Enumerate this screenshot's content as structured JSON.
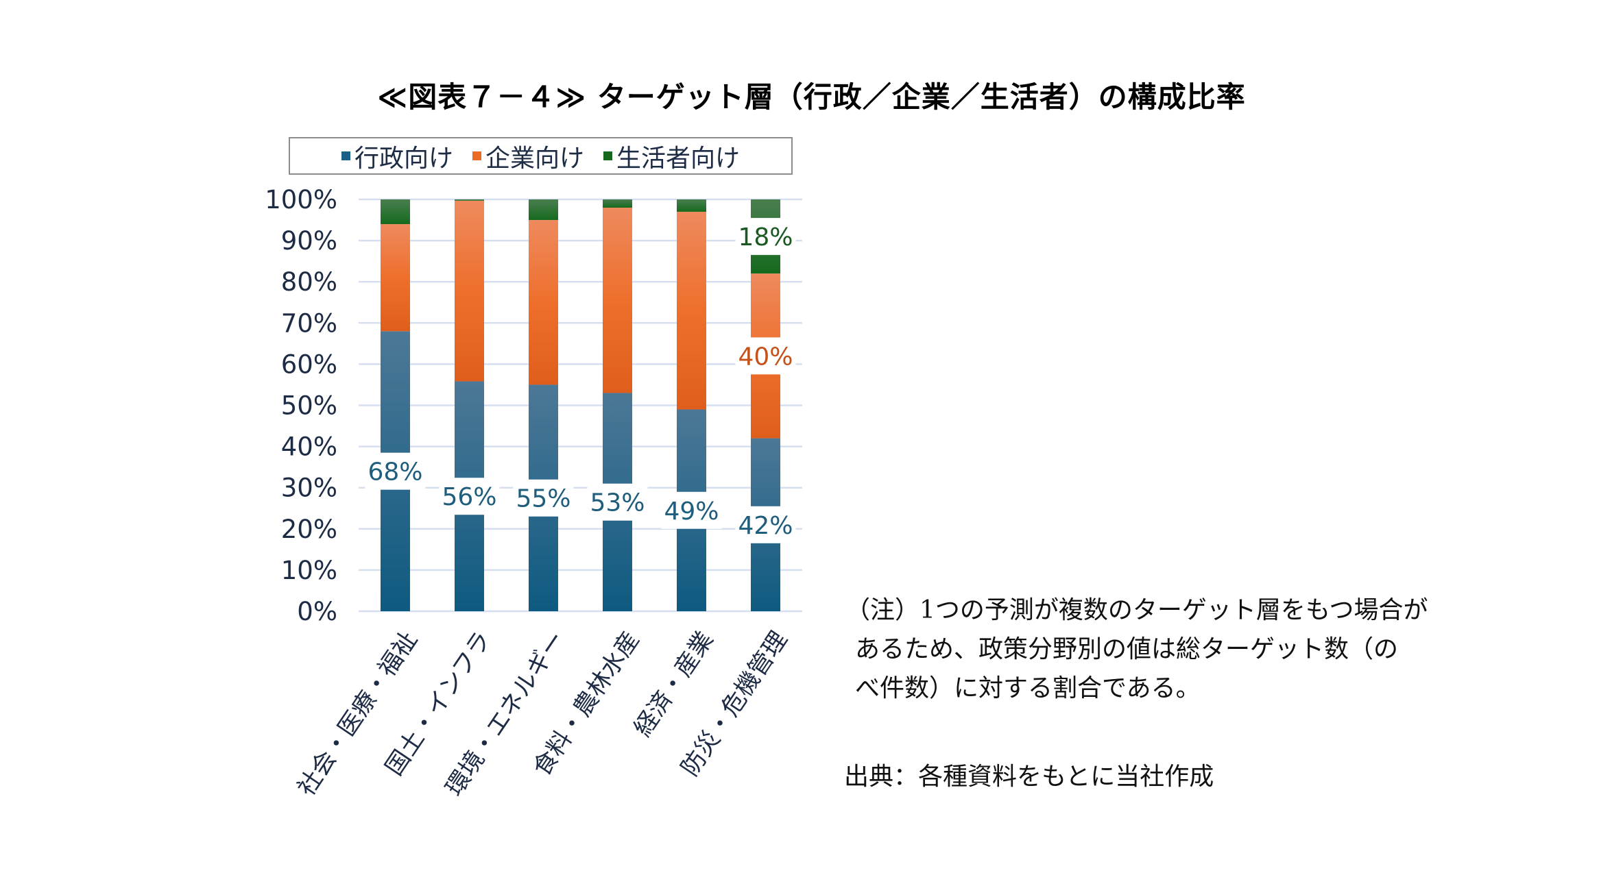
{
  "chart_data": {
    "type": "bar",
    "stacked": true,
    "normalized": true,
    "title": "≪図表７－４≫ ターゲット層（行政／企業／生活者）の構成比率",
    "xlabel": "",
    "ylabel": "",
    "categories": [
      "社会・医療・福祉",
      "国土・インフラ",
      "環境・エネルギー",
      "食料・農林水産",
      "経済・産業",
      "防災・危機管理"
    ],
    "series": [
      {
        "name": "行政向け",
        "color": "#1b5f86",
        "values": [
          68,
          56,
          55,
          53,
          49,
          42
        ],
        "data_labels": [
          "68%",
          "56%",
          "55%",
          "53%",
          "49%",
          "42%"
        ],
        "label_color": "#1f5d7d"
      },
      {
        "name": "企業向け",
        "color": "#ea6b26",
        "values": [
          26,
          44,
          40,
          45,
          48,
          40
        ],
        "data_labels": [
          "",
          "",
          "",
          "",
          "",
          "40%"
        ],
        "label_color": "#c5521a"
      },
      {
        "name": "生活者向け",
        "color": "#17691f",
        "values": [
          6,
          0.3,
          5,
          2,
          3,
          18
        ],
        "data_labels": [
          "",
          "",
          "",
          "",
          "",
          "18%"
        ],
        "label_color": "#1a5a22"
      }
    ],
    "ylim": [
      0,
      100
    ],
    "yticks": [
      "0%",
      "10%",
      "20%",
      "30%",
      "40%",
      "50%",
      "60%",
      "70%",
      "80%",
      "90%",
      "100%"
    ],
    "grid": true,
    "legend_position": "top"
  },
  "legend": [
    {
      "label": "行政向け",
      "color": "#1b5f86"
    },
    {
      "label": "企業向け",
      "color": "#ea6b26"
    },
    {
      "label": "生活者向け",
      "color": "#17691f"
    }
  ],
  "note": {
    "lines": [
      "（注）1つの予測が複数のターゲット層をもつ場合が",
      "あるため、政策分野別の値は総ターゲット数（の",
      "べ件数）に対する割合である。"
    ]
  },
  "source": "出典：各種資料をもとに当社作成"
}
